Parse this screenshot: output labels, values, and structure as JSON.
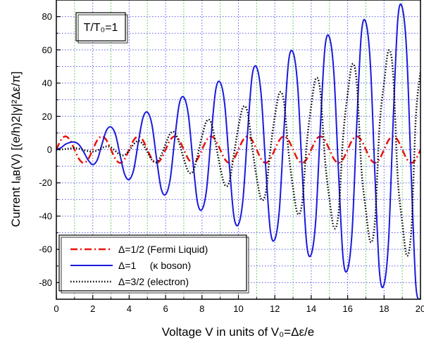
{
  "chart_data": {
    "type": "line",
    "title": "",
    "annotation": "T/T₀=1",
    "xlabel": "Voltage V in units of V₀=Δε/e",
    "ylabel": "Current   Iₐʙ(V)  [(e/h)2|γ|²Δε/π]",
    "xlim": [
      0,
      20
    ],
    "ylim": [
      -90,
      90
    ],
    "x_ticks": [
      0,
      2,
      4,
      6,
      8,
      10,
      12,
      14,
      16,
      18,
      20
    ],
    "y_ticks": [
      -80,
      -60,
      -40,
      -20,
      0,
      20,
      40,
      60,
      80
    ],
    "x_tick_labels": [
      "0",
      "2",
      "4",
      "6",
      "8",
      "10",
      "12",
      "14",
      "16",
      "18",
      "20"
    ],
    "y_tick_labels": [
      "-80",
      "-60",
      "-40",
      "-20",
      "0",
      "20",
      "40",
      "60",
      "80"
    ],
    "grid": {
      "vertical": "on (dotted, alternating green/blue at each unit)",
      "horizontal": "on (dotted blue at each 10 units)"
    },
    "legend_position": "bottom-left",
    "series": [
      {
        "name": "Δ=1/2 (Fermi Liquid)",
        "color": "#e8150c",
        "style": "dash-dot",
        "x": [
          0,
          0.25,
          0.5,
          0.75,
          1,
          1.25,
          1.5,
          1.75,
          2,
          2.25,
          2.5,
          2.75,
          3,
          3.25,
          3.5,
          3.75,
          4,
          4.25,
          4.5,
          4.75,
          5,
          5.25,
          5.5,
          5.75,
          6,
          6.25,
          6.5,
          6.75,
          7,
          7.25,
          7.5,
          7.75,
          8,
          8.25,
          8.5,
          8.75,
          9,
          9.25,
          9.5,
          9.75,
          10,
          10.25,
          10.5,
          10.75,
          11,
          11.25,
          11.5,
          11.75,
          12,
          12.25,
          12.5,
          12.75,
          13,
          13.25,
          13.5,
          13.75,
          14,
          14.25,
          14.5,
          14.75,
          15,
          15.25,
          15.5,
          15.75,
          16,
          16.25,
          16.5,
          16.75,
          17,
          17.25,
          17.5,
          17.75,
          18,
          18.25,
          18.5,
          18.75,
          19,
          19.25,
          19.5,
          19.75,
          20
        ],
        "y": [
          0,
          5.7,
          8.0,
          5.7,
          0,
          -5.7,
          -8.0,
          -5.7,
          0,
          5.7,
          8.0,
          5.7,
          0,
          -5.7,
          -8.0,
          -5.7,
          0,
          5.7,
          8.0,
          5.7,
          0,
          -5.7,
          -8.0,
          -5.7,
          0,
          5.7,
          8.0,
          5.7,
          0,
          -5.7,
          -8.0,
          -5.7,
          0,
          5.7,
          8.0,
          5.7,
          0,
          -5.7,
          -8.0,
          -5.7,
          0,
          5.7,
          8.0,
          5.7,
          0,
          -5.7,
          -8.0,
          -5.7,
          0,
          5.7,
          8.0,
          5.7,
          0,
          -5.7,
          -8.0,
          -5.7,
          0,
          5.7,
          8.0,
          5.7,
          0,
          -5.7,
          -8.0,
          -5.7,
          0,
          5.7,
          8.0,
          5.7,
          0,
          -5.7,
          -8.0,
          -5.7,
          0,
          5.7,
          8.0,
          5.7,
          0,
          -5.7,
          -8.0,
          -5.7,
          0
        ]
      },
      {
        "name": "Δ=1     (κ boson)",
        "color": "#1a1adc",
        "style": "solid",
        "x": [
          0,
          0.25,
          0.5,
          0.75,
          1,
          1.25,
          1.5,
          1.75,
          2,
          2.25,
          2.5,
          2.75,
          3,
          3.25,
          3.5,
          3.75,
          4,
          4.25,
          4.5,
          4.75,
          5,
          5.25,
          5.5,
          5.75,
          6,
          6.25,
          6.5,
          6.75,
          7,
          7.25,
          7.5,
          7.75,
          8,
          8.25,
          8.5,
          8.75,
          9,
          9.25,
          9.5,
          9.75,
          10,
          10.25,
          10.5,
          10.75,
          11,
          11.25,
          11.5,
          11.75,
          12,
          12.25,
          12.5,
          12.75,
          13,
          13.25,
          13.5,
          13.75,
          14,
          14.25,
          14.5,
          14.75,
          15,
          15.25,
          15.5,
          15.75,
          16,
          16.25,
          16.5,
          16.75,
          17,
          17.25,
          17.5,
          17.75,
          18,
          18.25,
          18.5,
          18.75,
          19,
          19.25,
          19.5,
          19.75,
          20
        ],
        "y": [
          0,
          1.1,
          3.2,
          4.3,
          4.5,
          2.9,
          -1.4,
          -6.3,
          -9.0,
          -6.1,
          3.0,
          11.5,
          13.6,
          9.0,
          -3.3,
          -14.8,
          -18.0,
          -12.0,
          4.2,
          18.9,
          22.5,
          15.0,
          -5.1,
          -23.1,
          -27.0,
          -18.0,
          6.0,
          27.3,
          31.5,
          21.0,
          -6.9,
          -31.5,
          -36.0,
          -24.0,
          7.8,
          35.7,
          40.5,
          27.0,
          -8.7,
          -39.9,
          -45.0,
          -30.0,
          9.6,
          44.1,
          49.5,
          33.0,
          -10.5,
          -48.3,
          -54.0,
          -36.0,
          11.4,
          52.5,
          58.5,
          39.0,
          -12.3,
          -56.7,
          -63.0,
          -42.0,
          13.2,
          60.9,
          67.5,
          45.0,
          -14.1,
          -65.1,
          -72.0,
          -48.0,
          15.0,
          69.3,
          76.5,
          51.0,
          -15.9,
          -73.5,
          -81.0,
          -54.0,
          16.8,
          77.7,
          85.5,
          57.0,
          -17.7,
          -81.9,
          -90.0
        ]
      },
      {
        "name": "Δ=3/2 (electron)",
        "color": "#000000",
        "style": "dotted",
        "x": [
          0,
          0.25,
          0.5,
          0.75,
          1,
          1.25,
          1.5,
          1.75,
          2,
          2.25,
          2.5,
          2.75,
          3,
          3.25,
          3.5,
          3.75,
          4,
          4.25,
          4.5,
          4.75,
          5,
          5.25,
          5.5,
          5.75,
          6,
          6.25,
          6.5,
          6.75,
          7,
          7.25,
          7.5,
          7.75,
          8,
          8.25,
          8.5,
          8.75,
          9,
          9.25,
          9.5,
          9.75,
          10,
          10.25,
          10.5,
          10.75,
          11,
          11.25,
          11.5,
          11.75,
          12,
          12.25,
          12.5,
          12.75,
          13,
          13.25,
          13.5,
          13.75,
          14,
          14.25,
          14.5,
          14.75,
          15,
          15.25,
          15.5,
          15.75,
          16,
          16.25,
          16.5,
          16.75,
          17,
          17.25,
          17.5,
          17.75,
          18,
          18.25,
          18.5,
          18.75,
          19,
          19.25,
          19.5,
          19.75,
          20
        ],
        "y": [
          0,
          0.1,
          0.4,
          0.7,
          0.9,
          0.6,
          -0.2,
          -0.9,
          -1.2,
          -0.5,
          1.0,
          1.9,
          1.3,
          -0.9,
          -3.1,
          -3.2,
          -0.6,
          3.3,
          5.2,
          3.3,
          -1.4,
          -6.2,
          -7.6,
          -3.6,
          3.3,
          9.6,
          10.3,
          4.0,
          -5.5,
          -13.2,
          -13.2,
          -4.0,
          8.0,
          17.1,
          16.3,
          3.7,
          -10.7,
          -21.2,
          -19.4,
          -3.1,
          13.6,
          25.4,
          22.6,
          2.1,
          -16.7,
          -29.7,
          -25.8,
          -0.7,
          19.9,
          34.0,
          28.9,
          -0.9,
          -23.2,
          -38.4,
          -32.0,
          2.9,
          26.5,
          42.7,
          35.0,
          -5.2,
          -29.9,
          -47.0,
          -37.9,
          7.7,
          33.3,
          51.3,
          40.6,
          -10.4,
          -36.7,
          -55.5,
          -43.2,
          13.4,
          40.1,
          59.7,
          45.6,
          -16.6,
          -43.5,
          -63.8,
          -47.7,
          20.0,
          46.9
        ]
      }
    ]
  }
}
